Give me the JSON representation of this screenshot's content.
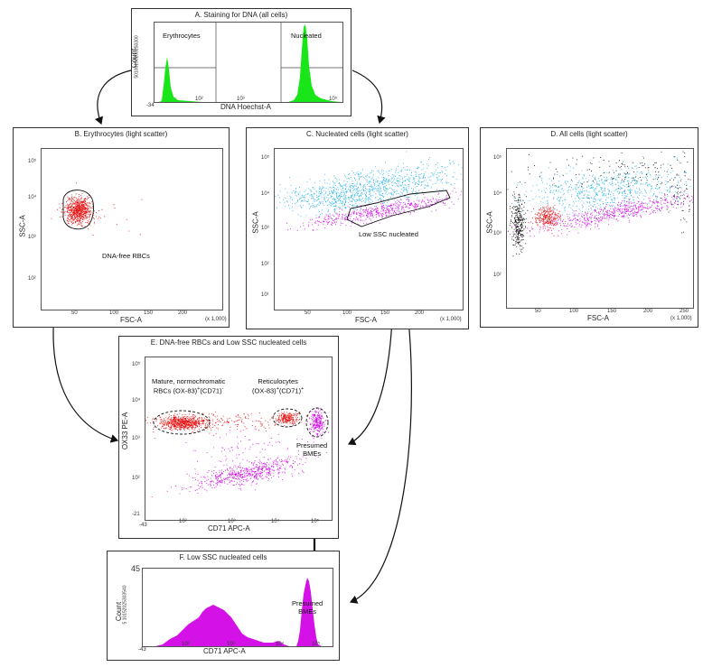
{
  "panels": {
    "a": {
      "title": "A. Staining for DNA (all cells)",
      "xlabel": "DNA Hoechst-A",
      "ylabel": "Count",
      "left_gate": "Erythrocytes",
      "right_gate": "Nucleated",
      "x_min": "-34"
    },
    "b": {
      "title": "B. Erythrocytes (light scatter)",
      "xlabel": "FSC-A",
      "ylabel": "SSC-A",
      "scale": "(x 1,000)",
      "gate_label": "DNA-free RBCs"
    },
    "c": {
      "title": "C. Nucleated cells (light scatter)",
      "xlabel": "FSC-A",
      "ylabel": "SSC-A",
      "scale": "(x 1,000)",
      "gate_label": "Low SSC nucleated"
    },
    "d": {
      "title": "D. All cells (light scatter)",
      "xlabel": "FSC-A",
      "ylabel": "SSC-A",
      "scale": "(x 1,000)"
    },
    "e": {
      "title": "E. DNA-free RBCs and Low SSC nucleated cells",
      "xlabel": "CD71 APC-A",
      "ylabel": "OX33 PE-A",
      "x_min": "-43",
      "y_min": "-21",
      "gate_mature_line1": "Mature, normochromatic",
      "gate_mature_line2": "RBCs (OX-83)",
      "gate_mature_sup1": "+",
      "gate_mature_mid": "(CD71)",
      "gate_mature_sup2": "-",
      "gate_retic_line1": "Reticulocytes",
      "gate_retic_line2": "(OX-83)",
      "gate_retic_sup1": "+",
      "gate_retic_mid": "(CD71)",
      "gate_retic_sup2": "+",
      "gate_bme_line1": "Presumed",
      "gate_bme_line2": "BMEs"
    },
    "f": {
      "title": "F. Low SSC nucleated cells",
      "xlabel": "CD71 APC-A",
      "ylabel": "Count",
      "x_min": "-43",
      "y_top": "45",
      "bme_line1": "Presumed",
      "bme_line2": "BMEs"
    }
  },
  "ticks": {
    "fsc": [
      "50",
      "100",
      "150",
      "200",
      "250"
    ],
    "log_x": [
      "10²",
      "10³",
      "10⁴",
      "10⁵"
    ],
    "log_y": [
      "10⁵",
      "10⁴",
      "10³",
      "10²",
      "10¹"
    ],
    "e_y": [
      "10⁵",
      "10⁴",
      "10³",
      "10²"
    ],
    "a_x": [
      "10²",
      "10³",
      "10⁵"
    ],
    "f_x": [
      "10²",
      "10³",
      "10⁴",
      "10⁵"
    ],
    "a_y_stack": "50100150200250300",
    "f_y_stack": "5 10152025303540"
  },
  "colors": {
    "green": "#19e619",
    "red": "#e81212",
    "magenta": "#d412e8",
    "cyan": "#2ab4e6",
    "black": "#111111"
  }
}
